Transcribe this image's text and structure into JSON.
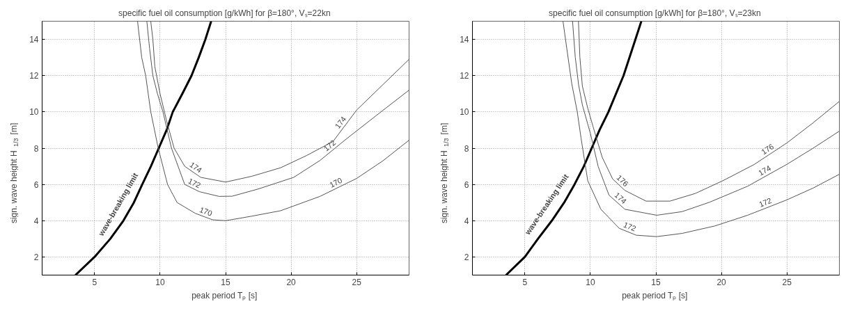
{
  "chart_data": [
    {
      "type": "line",
      "title": "specific fuel oil consumption [g/kWh] for β=180°,  Vₛ=22kn",
      "xlabel": "peak period  Tₚ [s]",
      "ylabel": "sign. wave height  H$_{1/3}$ [m]",
      "xlim": [
        1,
        29
      ],
      "ylim": [
        1,
        15
      ],
      "xticks": [
        5,
        10,
        15,
        20,
        25
      ],
      "yticks": [
        2,
        4,
        6,
        8,
        10,
        12,
        14
      ],
      "grid": true,
      "series": [
        {
          "name": "wave-breaking limit",
          "color": "#000000",
          "x": [
            3.54,
            5,
            6.2,
            7.2,
            8,
            8.64,
            9.3,
            9.9,
            10.5,
            10.97,
            11.7,
            12.4,
            12.95,
            13.46,
            13.9
          ],
          "values": [
            1,
            2,
            3,
            4,
            5,
            6,
            7,
            8,
            9,
            10,
            11,
            12,
            13,
            14,
            15
          ]
        },
        {
          "name": "170",
          "color": "#555555",
          "x": [
            8.28,
            8.6,
            8.9,
            9.29,
            9.86,
            10.57,
            11.3,
            12.7,
            14,
            15,
            17,
            19.2,
            22.2,
            25,
            27,
            29
          ],
          "values": [
            15,
            13,
            12,
            10,
            8,
            6,
            5,
            4.4,
            4.05,
            4,
            4.25,
            4.55,
            5.34,
            6.33,
            7.3,
            8.44
          ]
        },
        {
          "name": "172",
          "color": "#555555",
          "x": [
            8.99,
            9.2,
            9.45,
            9.8,
            10.22,
            10.87,
            11.88,
            13,
            14.5,
            15.5,
            17.5,
            20.2,
            22.2,
            24.2,
            26.5,
            29
          ],
          "values": [
            15,
            13.5,
            12,
            11,
            10,
            8,
            6,
            5.6,
            5.34,
            5.35,
            5.75,
            6.39,
            7.32,
            8.5,
            9.8,
            11.2
          ]
        },
        {
          "name": "174",
          "color": "#555555",
          "x": [
            9.29,
            9.45,
            9.6,
            10,
            10.5,
            11.07,
            11.88,
            13.1,
            15,
            17,
            19.2,
            21.2,
            23.2,
            25,
            27,
            29
          ],
          "values": [
            15,
            14,
            12.5,
            11,
            9.5,
            8,
            7,
            6.39,
            6.13,
            6.45,
            6.92,
            7.6,
            8.37,
            10.1,
            11.5,
            12.9
          ]
        }
      ]
    },
    {
      "type": "line",
      "title": "specific fuel oil consumption [g/kWh] for β=180°,  Vₛ=23kn",
      "xlabel": "peak period  Tₚ [s]",
      "ylabel": "sign. wave height  H$_{1/3}$ [m]",
      "xlim": [
        1,
        29
      ],
      "ylim": [
        1,
        15
      ],
      "xticks": [
        5,
        10,
        15,
        20,
        25
      ],
      "yticks": [
        2,
        4,
        6,
        8,
        10,
        12,
        14
      ],
      "grid": true,
      "series": [
        {
          "name": "wave-breaking limit",
          "color": "#000000",
          "x": [
            3.56,
            5,
            6,
            7.06,
            8,
            8.79,
            9.5,
            10.1,
            10.7,
            11.38,
            12.53,
            13.44,
            13.89
          ],
          "values": [
            1,
            2,
            3,
            4,
            5,
            6,
            7,
            8,
            9,
            10,
            12,
            14,
            15
          ]
        },
        {
          "name": "172",
          "color": "#555555",
          "x": [
            7.91,
            8.2,
            8.58,
            9,
            9.29,
            9.8,
            10.8,
            12.2,
            13.5,
            15.06,
            17,
            19.5,
            22,
            25,
            27,
            29
          ],
          "values": [
            15,
            13.5,
            11.56,
            10,
            8.55,
            6.2,
            4.63,
            3.58,
            3.2,
            3.12,
            3.3,
            3.71,
            4.3,
            5.15,
            5.8,
            6.56
          ]
        },
        {
          "name": "174",
          "color": "#555555",
          "x": [
            8.64,
            8.85,
            9.1,
            9.39,
            10,
            10.6,
            11.42,
            12.63,
            15.06,
            17,
            19.1,
            22,
            25,
            27,
            29
          ],
          "values": [
            15,
            13,
            11.5,
            10.38,
            8.81,
            6.98,
            5.41,
            4.63,
            4.3,
            4.5,
            5.02,
            5.9,
            7.11,
            8,
            8.94
          ]
        },
        {
          "name": "176",
          "color": "#555555",
          "x": [
            9.09,
            9.2,
            9.39,
            9.8,
            10.2,
            10.9,
            11.7,
            12.63,
            14.25,
            16.07,
            18,
            20.1,
            22.5,
            25,
            27,
            29
          ],
          "values": [
            15,
            13,
            11.42,
            10.2,
            9.2,
            7.5,
            6.3,
            5.67,
            5.08,
            5.08,
            5.5,
            6.2,
            7.1,
            8.29,
            9.4,
            10.58
          ]
        }
      ]
    }
  ]
}
